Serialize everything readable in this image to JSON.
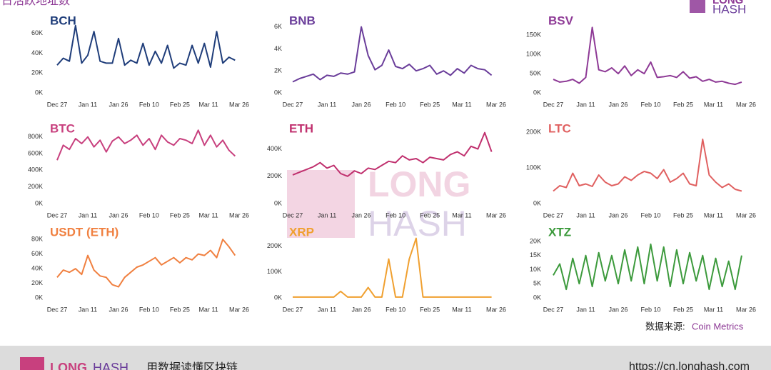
{
  "title": "日活跃地址数",
  "logo": {
    "top": "LONG",
    "bottom": "HASH"
  },
  "watermark": {
    "top": "LONG",
    "bottom": "HASH"
  },
  "source_label": "数据来源:",
  "source": "Coin Metrics",
  "footer": {
    "brand_a": "LONG",
    "brand_b": "HASH",
    "slogan": "用数据读懂区块链",
    "url": "https://cn.longhash.com"
  },
  "chart_data": [
    {
      "type": "line",
      "title": "BCH",
      "color": "#1f3d7a",
      "grid": false,
      "x": [
        0,
        3,
        6,
        9,
        12,
        15,
        18,
        21,
        24,
        27,
        30,
        33,
        36,
        39,
        42,
        45,
        48,
        51,
        54,
        57,
        60,
        63,
        66,
        69,
        72,
        75,
        78,
        81,
        84,
        87
      ],
      "values": [
        28000,
        35000,
        32000,
        68000,
        30000,
        38000,
        62000,
        32000,
        30000,
        30000,
        55000,
        28000,
        33000,
        30000,
        50000,
        28000,
        42000,
        30000,
        48000,
        25000,
        30000,
        28000,
        48000,
        30000,
        50000,
        26000,
        62000,
        30000,
        36000,
        33000
      ],
      "xlim": [
        0,
        89
      ],
      "xticks": [
        {
          "value": 0,
          "label": "Dec 27"
        },
        {
          "value": 15,
          "label": "Jan 11"
        },
        {
          "value": 30,
          "label": "Jan 26"
        },
        {
          "value": 45,
          "label": "Feb 10"
        },
        {
          "value": 60,
          "label": "Feb 25"
        },
        {
          "value": 74,
          "label": "Mar 11"
        },
        {
          "value": 89,
          "label": "Mar 26"
        }
      ],
      "ylim": [
        0,
        70000
      ],
      "yticks": [
        {
          "value": 0,
          "label": "0K"
        },
        {
          "value": 20000,
          "label": "20K"
        },
        {
          "value": 40000,
          "label": "40K"
        },
        {
          "value": 60000,
          "label": "60K"
        }
      ]
    },
    {
      "type": "line",
      "title": "BNB",
      "color": "#6a3d9a",
      "grid": false,
      "x": [
        0,
        3,
        6,
        9,
        12,
        15,
        18,
        21,
        24,
        27,
        30,
        33,
        36,
        39,
        42,
        45,
        48,
        51,
        54,
        57,
        60,
        63,
        66,
        69,
        72,
        75,
        78,
        81,
        84,
        87
      ],
      "values": [
        1000,
        1300,
        1500,
        1700,
        1200,
        1600,
        1500,
        1800,
        1700,
        1900,
        6000,
        3400,
        2100,
        2500,
        3900,
        2400,
        2200,
        2600,
        2000,
        2200,
        2500,
        1700,
        2000,
        1600,
        2200,
        1800,
        2500,
        2200,
        2100,
        1600
      ],
      "xlim": [
        0,
        89
      ],
      "xticks": [
        {
          "value": 0,
          "label": "Dec 27"
        },
        {
          "value": 15,
          "label": "Jan 11"
        },
        {
          "value": 30,
          "label": "Jan 26"
        },
        {
          "value": 45,
          "label": "Feb 10"
        },
        {
          "value": 60,
          "label": "Feb 25"
        },
        {
          "value": 74,
          "label": "Mar 11"
        },
        {
          "value": 89,
          "label": "Mar 26"
        }
      ],
      "ylim": [
        0,
        6300
      ],
      "yticks": [
        {
          "value": 0,
          "label": "0K"
        },
        {
          "value": 2000,
          "label": "2K"
        },
        {
          "value": 4000,
          "label": "4K"
        },
        {
          "value": 6000,
          "label": "6K"
        }
      ]
    },
    {
      "type": "line",
      "title": "BSV",
      "color": "#8e3a96",
      "grid": false,
      "x": [
        0,
        3,
        6,
        9,
        12,
        15,
        18,
        21,
        24,
        27,
        30,
        33,
        36,
        39,
        42,
        45,
        48,
        51,
        54,
        57,
        60,
        63,
        66,
        69,
        72,
        75,
        78,
        81,
        84,
        87
      ],
      "values": [
        35000,
        28000,
        30000,
        35000,
        25000,
        40000,
        170000,
        60000,
        55000,
        65000,
        50000,
        70000,
        45000,
        60000,
        50000,
        80000,
        40000,
        42000,
        45000,
        40000,
        55000,
        38000,
        42000,
        30000,
        35000,
        28000,
        30000,
        25000,
        22000,
        28000
      ],
      "xlim": [
        0,
        89
      ],
      "xticks": [
        {
          "value": 0,
          "label": "Dec 27"
        },
        {
          "value": 15,
          "label": "Jan 11"
        },
        {
          "value": 30,
          "label": "Jan 26"
        },
        {
          "value": 45,
          "label": "Feb 10"
        },
        {
          "value": 60,
          "label": "Feb 25"
        },
        {
          "value": 74,
          "label": "Mar 11"
        },
        {
          "value": 89,
          "label": "Mar 26"
        }
      ],
      "ylim": [
        0,
        180000
      ],
      "yticks": [
        {
          "value": 0,
          "label": "0K"
        },
        {
          "value": 50000,
          "label": "50K"
        },
        {
          "value": 100000,
          "label": "100K"
        },
        {
          "value": 150000,
          "label": "150K"
        }
      ]
    },
    {
      "type": "line",
      "title": "BTC",
      "color": "#c8407e",
      "grid": false,
      "x": [
        0,
        3,
        6,
        9,
        12,
        15,
        18,
        21,
        24,
        27,
        30,
        33,
        36,
        39,
        42,
        45,
        48,
        51,
        54,
        57,
        60,
        63,
        66,
        69,
        72,
        75,
        78,
        81,
        84,
        87
      ],
      "values": [
        520000,
        700000,
        650000,
        780000,
        720000,
        800000,
        680000,
        760000,
        620000,
        750000,
        800000,
        720000,
        760000,
        820000,
        700000,
        780000,
        650000,
        820000,
        740000,
        700000,
        780000,
        760000,
        720000,
        880000,
        700000,
        820000,
        680000,
        760000,
        640000,
        570000
      ],
      "xlim": [
        0,
        89
      ],
      "xticks": [
        {
          "value": 0,
          "label": "Dec 27"
        },
        {
          "value": 15,
          "label": "Jan 11"
        },
        {
          "value": 30,
          "label": "Jan 26"
        },
        {
          "value": 45,
          "label": "Feb 10"
        },
        {
          "value": 60,
          "label": "Feb 25"
        },
        {
          "value": 74,
          "label": "Mar 11"
        },
        {
          "value": 89,
          "label": "Mar 26"
        }
      ],
      "ylim": [
        0,
        900000
      ],
      "yticks": [
        {
          "value": 0,
          "label": "0K"
        },
        {
          "value": 200000,
          "label": "200K"
        },
        {
          "value": 400000,
          "label": "400K"
        },
        {
          "value": 600000,
          "label": "600K"
        },
        {
          "value": 800000,
          "label": "800K"
        }
      ]
    },
    {
      "type": "line",
      "title": "ETH",
      "color": "#c0306e",
      "grid": false,
      "x": [
        0,
        3,
        6,
        9,
        12,
        15,
        18,
        21,
        24,
        27,
        30,
        33,
        36,
        39,
        42,
        45,
        48,
        51,
        54,
        57,
        60,
        63,
        66,
        69,
        72,
        75,
        78,
        81,
        84,
        87
      ],
      "values": [
        210000,
        230000,
        250000,
        270000,
        300000,
        260000,
        280000,
        220000,
        200000,
        240000,
        220000,
        260000,
        250000,
        280000,
        310000,
        300000,
        350000,
        320000,
        330000,
        300000,
        340000,
        330000,
        320000,
        360000,
        380000,
        350000,
        420000,
        400000,
        520000,
        380000
      ],
      "xlim": [
        0,
        89
      ],
      "xticks": [
        {
          "value": 0,
          "label": "Dec 27"
        },
        {
          "value": 15,
          "label": "Jan 11"
        },
        {
          "value": 30,
          "label": "Jan 26"
        },
        {
          "value": 45,
          "label": "Feb 10"
        },
        {
          "value": 60,
          "label": "Feb 25"
        },
        {
          "value": 74,
          "label": "Mar 11"
        },
        {
          "value": 89,
          "label": "Mar 26"
        }
      ],
      "ylim": [
        0,
        550000
      ],
      "yticks": [
        {
          "value": 0,
          "label": "0K"
        },
        {
          "value": 200000,
          "label": "200K"
        },
        {
          "value": 400000,
          "label": "400K"
        }
      ]
    },
    {
      "type": "line",
      "title": "LTC",
      "color": "#e06060",
      "grid": false,
      "x": [
        0,
        3,
        6,
        9,
        12,
        15,
        18,
        21,
        24,
        27,
        30,
        33,
        36,
        39,
        42,
        45,
        48,
        51,
        54,
        57,
        60,
        63,
        66,
        69,
        72,
        75,
        78,
        81,
        84,
        87
      ],
      "values": [
        35000,
        50000,
        45000,
        85000,
        50000,
        55000,
        48000,
        80000,
        60000,
        50000,
        55000,
        75000,
        65000,
        80000,
        90000,
        85000,
        70000,
        95000,
        60000,
        70000,
        85000,
        55000,
        50000,
        180000,
        80000,
        60000,
        45000,
        55000,
        40000,
        35000
      ],
      "xlim": [
        0,
        89
      ],
      "xticks": [
        {
          "value": 0,
          "label": "Dec 27"
        },
        {
          "value": 15,
          "label": "Jan 11"
        },
        {
          "value": 30,
          "label": "Jan 26"
        },
        {
          "value": 45,
          "label": "Feb 10"
        },
        {
          "value": 60,
          "label": "Feb 25"
        },
        {
          "value": 74,
          "label": "Mar 11"
        },
        {
          "value": 89,
          "label": "Mar 26"
        }
      ],
      "ylim": [
        0,
        210000
      ],
      "yticks": [
        {
          "value": 0,
          "label": "0K"
        },
        {
          "value": 100000,
          "label": "100K"
        },
        {
          "value": 200000,
          "label": "200K"
        }
      ]
    },
    {
      "type": "line",
      "title": "USDT (ETH)",
      "color": "#f08040",
      "grid": false,
      "x": [
        0,
        3,
        6,
        9,
        12,
        15,
        18,
        21,
        24,
        27,
        30,
        33,
        36,
        39,
        42,
        45,
        48,
        51,
        54,
        57,
        60,
        63,
        66,
        69,
        72,
        75,
        78,
        81,
        84,
        87
      ],
      "values": [
        28000,
        38000,
        35000,
        40000,
        32000,
        58000,
        38000,
        30000,
        28000,
        18000,
        15000,
        28000,
        35000,
        42000,
        45000,
        50000,
        55000,
        45000,
        50000,
        55000,
        48000,
        55000,
        52000,
        60000,
        58000,
        65000,
        55000,
        80000,
        70000,
        58000
      ],
      "xlim": [
        0,
        89
      ],
      "xticks": [
        {
          "value": 0,
          "label": "Dec 27"
        },
        {
          "value": 15,
          "label": "Jan 11"
        },
        {
          "value": 30,
          "label": "Jan 26"
        },
        {
          "value": 45,
          "label": "Feb 10"
        },
        {
          "value": 60,
          "label": "Feb 25"
        },
        {
          "value": 74,
          "label": "Mar 11"
        },
        {
          "value": 89,
          "label": "Mar 26"
        }
      ],
      "ylim": [
        0,
        85000
      ],
      "yticks": [
        {
          "value": 0,
          "label": "0K"
        },
        {
          "value": 20000,
          "label": "20K"
        },
        {
          "value": 40000,
          "label": "40K"
        },
        {
          "value": 60000,
          "label": "60K"
        },
        {
          "value": 80000,
          "label": "80K"
        }
      ]
    },
    {
      "type": "line",
      "title": "XRP",
      "color": "#f0a030",
      "grid": false,
      "x": [
        0,
        3,
        6,
        9,
        12,
        15,
        18,
        21,
        24,
        27,
        30,
        33,
        36,
        39,
        42,
        45,
        48,
        51,
        54,
        57,
        60,
        63,
        66,
        69,
        72,
        75,
        78,
        81,
        84,
        87
      ],
      "values": [
        3000,
        3000,
        3000,
        3000,
        3000,
        3000,
        3000,
        25000,
        3000,
        3000,
        3000,
        40000,
        3000,
        3000,
        150000,
        3000,
        3000,
        150000,
        230000,
        3000,
        3000,
        3000,
        3000,
        3000,
        3000,
        3000,
        3000,
        3000,
        3000,
        3000
      ],
      "xlim": [
        0,
        89
      ],
      "xticks": [
        {
          "value": 0,
          "label": "Dec 27"
        },
        {
          "value": 15,
          "label": "Jan 11"
        },
        {
          "value": 30,
          "label": "Jan 26"
        },
        {
          "value": 45,
          "label": "Feb 10"
        },
        {
          "value": 60,
          "label": "Feb 25"
        },
        {
          "value": 74,
          "label": "Mar 11"
        },
        {
          "value": 89,
          "label": "Mar 26"
        }
      ],
      "ylim": [
        0,
        240000
      ],
      "yticks": [
        {
          "value": 0,
          "label": "0K"
        },
        {
          "value": 100000,
          "label": "100K"
        },
        {
          "value": 200000,
          "label": "200K"
        }
      ]
    },
    {
      "type": "line",
      "title": "XTZ",
      "color": "#3c9a3c",
      "grid": false,
      "x": [
        0,
        3,
        6,
        9,
        12,
        15,
        18,
        21,
        24,
        27,
        30,
        33,
        36,
        39,
        42,
        45,
        48,
        51,
        54,
        57,
        60,
        63,
        66,
        69,
        72,
        75,
        78,
        81,
        84,
        87
      ],
      "values": [
        8000,
        12000,
        3000,
        14000,
        5000,
        15000,
        4000,
        16000,
        6000,
        15000,
        5000,
        17000,
        6000,
        18000,
        5000,
        19000,
        6000,
        18000,
        4000,
        17000,
        5000,
        16000,
        6000,
        15000,
        3000,
        14000,
        4000,
        13000,
        3000,
        15000
      ],
      "xlim": [
        0,
        89
      ],
      "xticks": [
        {
          "value": 0,
          "label": "Dec 27"
        },
        {
          "value": 15,
          "label": "Jan 11"
        },
        {
          "value": 30,
          "label": "Jan 26"
        },
        {
          "value": 45,
          "label": "Feb 10"
        },
        {
          "value": 60,
          "label": "Feb 25"
        },
        {
          "value": 74,
          "label": "Mar 11"
        },
        {
          "value": 89,
          "label": "Mar 26"
        }
      ],
      "ylim": [
        0,
        22000
      ],
      "yticks": [
        {
          "value": 0,
          "label": "0K"
        },
        {
          "value": 5000,
          "label": "5K"
        },
        {
          "value": 10000,
          "label": "10K"
        },
        {
          "value": 15000,
          "label": "15K"
        },
        {
          "value": 20000,
          "label": "20K"
        }
      ]
    }
  ]
}
